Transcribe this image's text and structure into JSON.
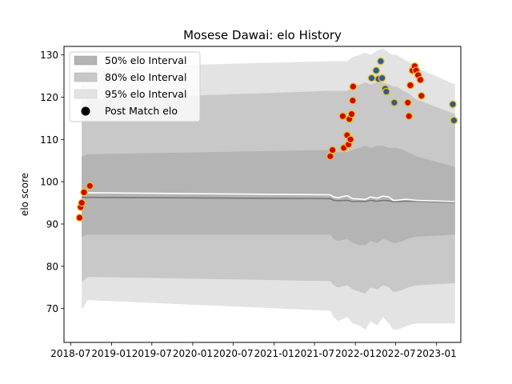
{
  "chart_data": {
    "type": "line",
    "title": "Mosese Dawai: elo History",
    "xlabel": "",
    "ylabel": "elo score",
    "xlim": [
      "2018-06-01",
      "2023-04-20"
    ],
    "ylim": [
      62,
      132
    ],
    "yticks": [
      70,
      80,
      90,
      100,
      110,
      120,
      130
    ],
    "xticks": [
      {
        "date": "2018-07-01",
        "label": "2018-07"
      },
      {
        "date": "2019-01-01",
        "label": "2019-01"
      },
      {
        "date": "2019-07-01",
        "label": "2019-07"
      },
      {
        "date": "2020-01-01",
        "label": "2020-01"
      },
      {
        "date": "2020-07-01",
        "label": "2020-07"
      },
      {
        "date": "2021-01-01",
        "label": "2021-01"
      },
      {
        "date": "2021-07-01",
        "label": "2021-07"
      },
      {
        "date": "2022-01-01",
        "label": "2022-01"
      },
      {
        "date": "2022-07-01",
        "label": "2022-07"
      },
      {
        "date": "2023-01-01",
        "label": "2023-01"
      }
    ],
    "legend": {
      "position": "top-left",
      "entries": [
        "50% elo Interval",
        "80% elo Interval",
        "95% elo Interval",
        "Post Match elo"
      ]
    },
    "colors": {
      "band50": "#b4b4b4",
      "band80": "#c8c8c8",
      "band95": "#e3e3e3",
      "mean_line": "#777777",
      "median_line": "#ffffff",
      "win_marker": "#d40000",
      "loss_marker": "#2f5b8f",
      "marker_edge": "#e8c020"
    },
    "bands": {
      "x": [
        "2018-08-20",
        "2018-08-25",
        "2018-09-15",
        "2021-09-10",
        "2021-09-25",
        "2021-10-15",
        "2021-11-25",
        "2021-12-20",
        "2022-01-20",
        "2022-02-15",
        "2022-03-10",
        "2022-04-10",
        "2022-05-05",
        "2022-06-01",
        "2022-06-20",
        "2022-07-05",
        "2022-08-05",
        "2022-08-25",
        "2022-10-01",
        "2023-03-25"
      ],
      "lo95": [
        70,
        70,
        72,
        69.5,
        68,
        67,
        68,
        66.5,
        66,
        65,
        67,
        66,
        68,
        66.5,
        65,
        65,
        65.5,
        66,
        66.5,
        66.5
      ],
      "hi95": [
        126,
        126,
        127,
        128.5,
        128.5,
        128.5,
        128.5,
        129.5,
        130,
        130.5,
        130,
        131,
        131.5,
        130.5,
        130,
        130,
        129,
        128.5,
        127,
        123
      ],
      "lo80": [
        76.5,
        76.5,
        77.5,
        76.5,
        75.5,
        75,
        75.5,
        74.5,
        74,
        73.5,
        75,
        74.5,
        75.5,
        75,
        74,
        74,
        74.5,
        75,
        75.5,
        76
      ],
      "hi80": [
        118.5,
        118.5,
        119.5,
        121.5,
        121.5,
        121.5,
        121.5,
        122.5,
        123,
        123.5,
        123,
        123.5,
        123.5,
        123,
        122.5,
        122.5,
        121.5,
        121,
        119.5,
        116
      ],
      "lo50": [
        87,
        87,
        87.5,
        87.5,
        86.5,
        86,
        86.5,
        85.5,
        85,
        85,
        86,
        85.5,
        86.5,
        86,
        85.5,
        85.5,
        86,
        86.5,
        87,
        87.5
      ],
      "hi50": [
        106,
        106,
        106.5,
        107.5,
        107,
        107,
        107,
        107.5,
        108,
        108.5,
        108,
        108.5,
        108.5,
        108,
        108,
        108,
        107.5,
        107,
        106,
        103.5
      ],
      "mean": [
        96.3,
        96.3,
        96.3,
        96,
        95.6,
        95.5,
        95.6,
        95.3,
        95.4,
        95.3,
        95.6,
        95.4,
        95.6,
        95.5,
        95.3,
        95.3,
        95.4,
        95.4,
        95.4,
        95.1
      ],
      "median": [
        97.2,
        97.3,
        97.4,
        96.9,
        96.4,
        96.2,
        96.7,
        96,
        95.9,
        95.8,
        96.4,
        96.1,
        96.6,
        96.4,
        95.6,
        95.6,
        95.8,
        95.8,
        95.6,
        95.3
      ]
    },
    "series": [
      {
        "name": "Post Match elo",
        "points": [
          {
            "x": "2018-08-10",
            "y": 91.5,
            "result": "win"
          },
          {
            "x": "2018-08-15",
            "y": 94,
            "result": "win"
          },
          {
            "x": "2018-08-20",
            "y": 95,
            "result": "win"
          },
          {
            "x": "2018-08-30",
            "y": 97.5,
            "result": "win"
          },
          {
            "x": "2018-09-25",
            "y": 99,
            "result": "win"
          },
          {
            "x": "2021-09-10",
            "y": 106,
            "result": "win"
          },
          {
            "x": "2021-09-20",
            "y": 107.5,
            "result": "win"
          },
          {
            "x": "2021-11-05",
            "y": 115.5,
            "result": "win"
          },
          {
            "x": "2021-11-10",
            "y": 108,
            "result": "win"
          },
          {
            "x": "2021-11-25",
            "y": 111,
            "result": "win"
          },
          {
            "x": "2021-12-01",
            "y": 108.8,
            "result": "win"
          },
          {
            "x": "2021-12-05",
            "y": 114.8,
            "result": "win"
          },
          {
            "x": "2021-12-10",
            "y": 110,
            "result": "win"
          },
          {
            "x": "2021-12-15",
            "y": 116,
            "result": "win"
          },
          {
            "x": "2021-12-20",
            "y": 119.2,
            "result": "win"
          },
          {
            "x": "2021-12-22",
            "y": 122.5,
            "result": "win"
          },
          {
            "x": "2022-03-15",
            "y": 124.5,
            "result": "loss"
          },
          {
            "x": "2022-04-05",
            "y": 126.3,
            "result": "loss"
          },
          {
            "x": "2022-04-15",
            "y": 124.3,
            "result": "loss"
          },
          {
            "x": "2022-04-25",
            "y": 128.5,
            "result": "loss"
          },
          {
            "x": "2022-05-01",
            "y": 124.5,
            "result": "loss"
          },
          {
            "x": "2022-05-15",
            "y": 122,
            "result": "loss"
          },
          {
            "x": "2022-05-20",
            "y": 121.3,
            "result": "loss"
          },
          {
            "x": "2022-06-25",
            "y": 118.7,
            "result": "loss"
          },
          {
            "x": "2022-08-25",
            "y": 118.7,
            "result": "win"
          },
          {
            "x": "2022-08-30",
            "y": 115.5,
            "result": "win"
          },
          {
            "x": "2022-09-05",
            "y": 122.8,
            "result": "win"
          },
          {
            "x": "2022-09-15",
            "y": 126.3,
            "result": "win"
          },
          {
            "x": "2022-09-25",
            "y": 127.3,
            "result": "win"
          },
          {
            "x": "2022-10-01",
            "y": 126.3,
            "result": "win"
          },
          {
            "x": "2022-10-10",
            "y": 125.2,
            "result": "win"
          },
          {
            "x": "2022-10-20",
            "y": 124.1,
            "result": "win"
          },
          {
            "x": "2022-10-25",
            "y": 120.3,
            "result": "win"
          },
          {
            "x": "2023-03-15",
            "y": 118.3,
            "result": "loss"
          },
          {
            "x": "2023-03-20",
            "y": 114.5,
            "result": "loss"
          }
        ]
      }
    ]
  }
}
